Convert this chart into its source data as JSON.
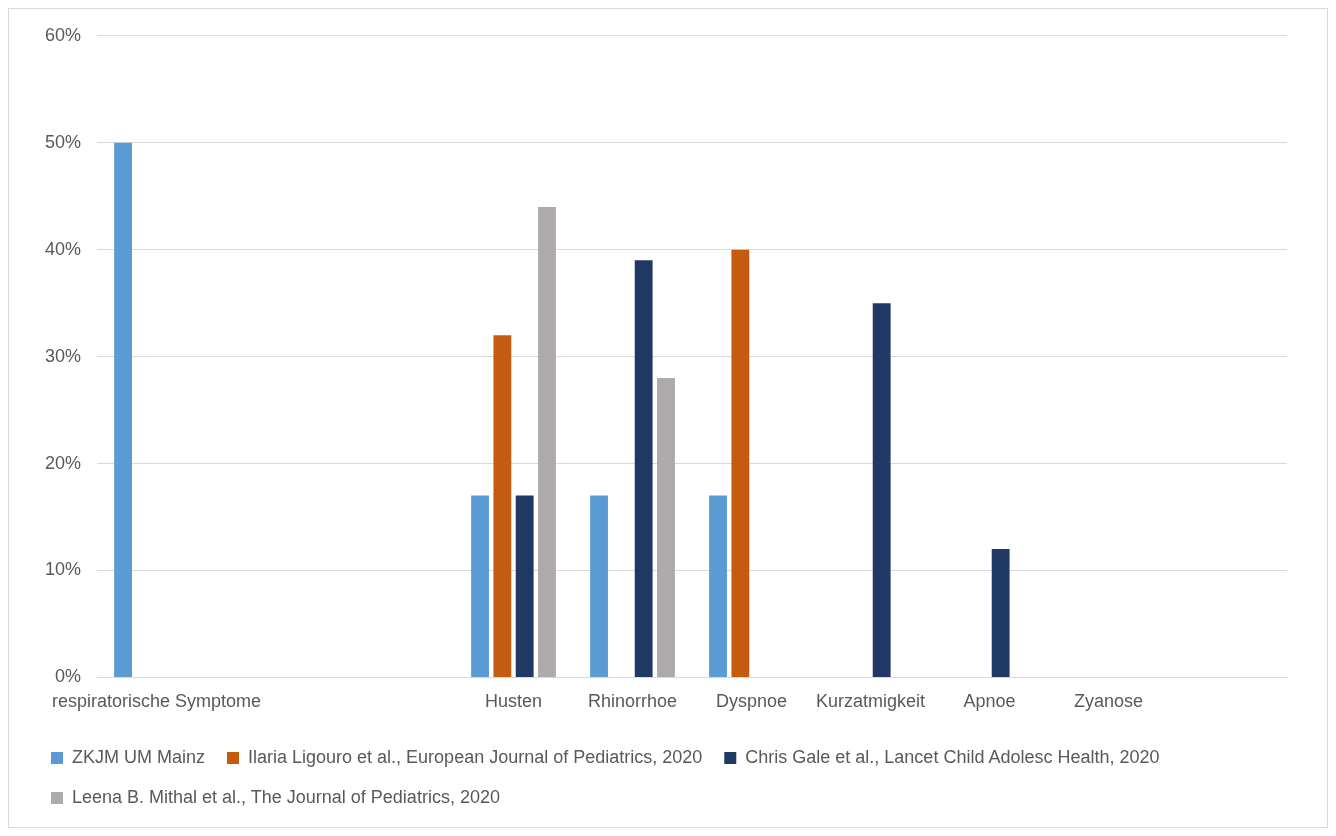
{
  "chart_data": {
    "type": "bar",
    "categories": [
      "respiratorische Symptome",
      null,
      null,
      "Husten",
      "Rhinorrhoe",
      "Dyspnoe",
      "Kurzatmigkeit",
      "Apnoe",
      "Zyanose",
      null
    ],
    "series": [
      {
        "name": "ZKJM UM Mainz",
        "color": "#5b9bd5",
        "values": [
          50,
          null,
          null,
          17,
          17,
          17,
          null,
          null,
          null,
          null
        ]
      },
      {
        "name": "Ilaria Ligouro et al., European Journal of Pediatrics, 2020",
        "color": "#c55a11",
        "values": [
          null,
          null,
          null,
          32,
          null,
          40,
          null,
          null,
          null,
          null
        ]
      },
      {
        "name": "Chris Gale et al., Lancet Child Adolesc Health, 2020",
        "color": "#203864",
        "values": [
          null,
          null,
          null,
          17,
          39,
          null,
          35,
          12,
          null,
          null
        ]
      },
      {
        "name": "Leena B. Mithal et al., The Journal of Pediatrics, 2020",
        "color": "#aeaaaa",
        "values": [
          null,
          null,
          null,
          44,
          28,
          null,
          null,
          null,
          null,
          null
        ]
      }
    ],
    "ylim": [
      0,
      60
    ],
    "yticks": [
      {
        "value": 0,
        "label": "0%"
      },
      {
        "value": 10,
        "label": "10%"
      },
      {
        "value": 20,
        "label": "20%"
      },
      {
        "value": 30,
        "label": "30%"
      },
      {
        "value": 40,
        "label": "40%"
      },
      {
        "value": 50,
        "label": "50%"
      },
      {
        "value": 60,
        "label": "60%"
      }
    ],
    "grid": "y",
    "legend": "bottom"
  }
}
